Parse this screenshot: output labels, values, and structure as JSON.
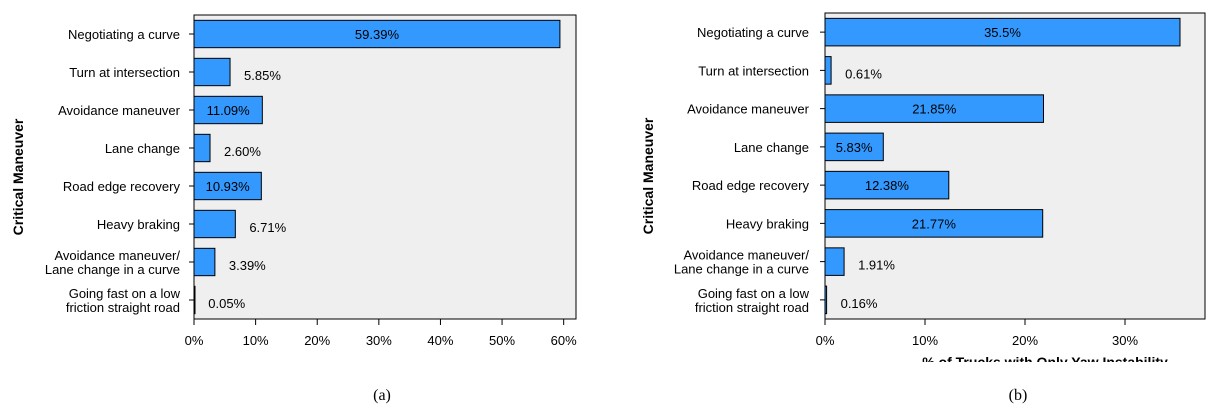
{
  "chart_data": [
    {
      "type": "bar",
      "orientation": "horizontal",
      "caption": "(a)",
      "ylabel": "Critical Maneuver",
      "xlabel": "",
      "categories": [
        "Negotiating a curve",
        "Turn at intersection",
        "Avoidance maneuver",
        "Lane change",
        "Road edge recovery",
        "Heavy braking",
        "Avoidance maneuver/\nLane change in a curve",
        "Going fast on a low\nfriction straight road"
      ],
      "values": [
        59.39,
        5.85,
        11.09,
        2.6,
        10.93,
        6.71,
        3.39,
        0.05
      ],
      "value_labels": [
        "59.39%",
        "5.85%",
        "11.09%",
        "2.60%",
        "10.93%",
        "6.71%",
        "3.39%",
        "0.05%"
      ],
      "xlim": [
        0,
        62
      ],
      "xticks": [
        0,
        10,
        20,
        30,
        40,
        50,
        60
      ],
      "xtick_labels": [
        "0%",
        "10%",
        "20%",
        "30%",
        "40%",
        "50%",
        "60%"
      ],
      "bar_color": "#3399ff",
      "plot_background": "#efefef",
      "grid": false
    },
    {
      "type": "bar",
      "orientation": "horizontal",
      "caption": "(b)",
      "ylabel": "Critical Maneuver",
      "xlabel": "% of Trucks with Only Yaw Instability",
      "categories": [
        "Negotiating a curve",
        "Turn at intersection",
        "Avoidance maneuver",
        "Lane change",
        "Road edge recovery",
        "Heavy braking",
        "Avoidance maneuver/\nLane change in a curve",
        "Going fast on a low\nfriction straight road"
      ],
      "values": [
        35.5,
        0.61,
        21.85,
        5.83,
        12.38,
        21.77,
        1.91,
        0.16
      ],
      "value_labels": [
        "35.5%",
        "0.61%",
        "21.85%",
        "5.83%",
        "12.38%",
        "21.77%",
        "1.91%",
        "0.16%"
      ],
      "xlim": [
        0,
        38
      ],
      "xticks": [
        0,
        10,
        20,
        30
      ],
      "xtick_labels": [
        "0%",
        "10%",
        "20%",
        "30%"
      ],
      "bar_color": "#3399ff",
      "plot_background": "#efefef",
      "grid": false
    }
  ]
}
